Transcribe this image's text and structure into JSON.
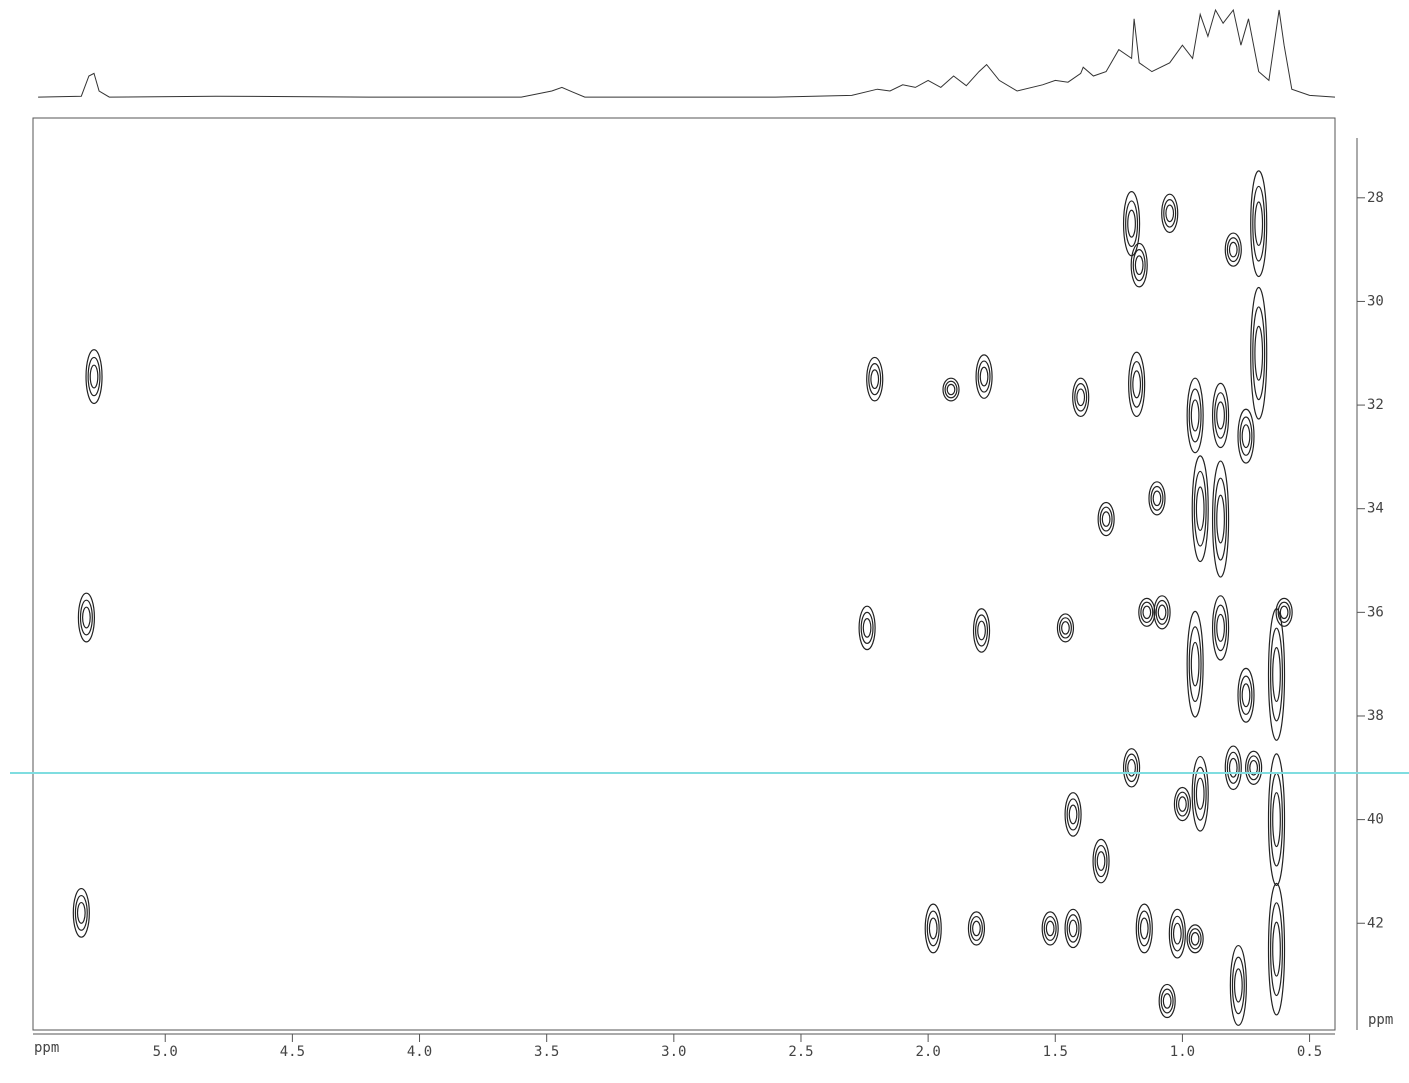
{
  "chart_data": {
    "type": "contour",
    "xlabel": "ppm",
    "ylabel": "ppm",
    "xlim": [
      5.52,
      0.4
    ],
    "ylim": [
      26.46,
      44.06
    ],
    "xticks": [
      {
        "value": 5,
        "label": "5.0"
      },
      4.5,
      {
        "value": 4,
        "label": "4.0"
      },
      3.5,
      {
        "value": 3,
        "label": "3.0"
      },
      2.5,
      {
        "value": 2,
        "label": "2.0"
      },
      1.5,
      {
        "value": 1,
        "label": "1.0"
      },
      0.5
    ],
    "yticks": [
      28,
      30,
      32,
      34,
      36,
      38,
      40,
      42
    ],
    "cursor_y": 39.1,
    "cursor_color": "#7fdde0",
    "color": "#222222",
    "peaks": {
      "x": [
        5.28,
        5.31,
        5.33,
        2.21,
        2.24,
        1.91,
        1.78,
        1.4,
        1.79,
        1.46,
        1.98,
        1.81,
        1.52,
        1.43,
        1.43,
        1.15,
        1.02,
        0.95,
        1.2,
        1.17,
        1.05,
        0.8,
        0.7,
        0.7,
        1.18,
        0.95,
        0.85,
        0.75,
        0.93,
        0.85,
        1.1,
        1.3,
        1.08,
        0.95,
        0.85,
        0.75,
        0.8,
        0.72,
        0.93,
        0.63,
        0.63,
        0.63,
        1.0,
        1.32,
        1.2,
        0.78,
        0.6,
        1.06,
        1.14
      ],
      "values": [
        31.45,
        36.1,
        41.8,
        31.5,
        36.3,
        31.7,
        31.45,
        31.85,
        36.35,
        36.3,
        42.1,
        42.1,
        42.1,
        42.1,
        39.9,
        42.1,
        42.2,
        42.3,
        28.5,
        29.3,
        28.3,
        29.0,
        28.5,
        31.0,
        31.6,
        32.2,
        32.2,
        32.6,
        34.0,
        34.2,
        33.8,
        34.2,
        36.0,
        37.0,
        36.3,
        37.6,
        39.0,
        39.0,
        39.5,
        37.2,
        40.0,
        42.5,
        39.7,
        40.8,
        39.0,
        43.2,
        36.0,
        43.5,
        36.0
      ],
      "height": [
        1.0,
        0.9,
        0.9,
        0.8,
        0.8,
        0.4,
        0.8,
        0.7,
        0.8,
        0.5,
        0.9,
        0.6,
        0.6,
        0.7,
        0.8,
        0.9,
        0.9,
        0.5,
        1.2,
        0.8,
        0.7,
        0.6,
        2.0,
        2.5,
        1.2,
        1.4,
        1.2,
        1.0,
        2.0,
        2.2,
        0.6,
        0.6,
        0.6,
        2.0,
        1.2,
        1.0,
        0.8,
        0.6,
        1.4,
        2.5,
        2.5,
        2.5,
        0.6,
        0.8,
        0.7,
        1.5,
        0.5,
        0.6,
        0.5
      ]
    },
    "projection": {
      "x": [
        5.5,
        5.33,
        5.3,
        5.28,
        5.26,
        5.22,
        4.8,
        4.2,
        3.6,
        3.48,
        3.44,
        3.4,
        3.35,
        2.6,
        2.3,
        2.2,
        2.15,
        2.1,
        2.05,
        2.0,
        1.95,
        1.9,
        1.85,
        1.8,
        1.77,
        1.72,
        1.65,
        1.55,
        1.5,
        1.45,
        1.4,
        1.39,
        1.35,
        1.3,
        1.25,
        1.2,
        1.19,
        1.17,
        1.12,
        1.05,
        1.0,
        0.96,
        0.93,
        0.9,
        0.87,
        0.84,
        0.8,
        0.77,
        0.74,
        0.7,
        0.66,
        0.62,
        0.6,
        0.57,
        0.5,
        0.4
      ],
      "values": [
        1,
        2,
        25,
        28,
        8,
        1,
        2,
        1,
        1,
        8,
        12,
        7,
        1,
        1,
        3,
        10,
        8,
        15,
        12,
        20,
        12,
        25,
        14,
        30,
        38,
        20,
        8,
        15,
        20,
        18,
        28,
        35,
        25,
        30,
        55,
        45,
        90,
        40,
        30,
        40,
        60,
        45,
        95,
        70,
        100,
        85,
        100,
        60,
        90,
        30,
        20,
        100,
        60,
        10,
        3,
        1
      ]
    }
  }
}
